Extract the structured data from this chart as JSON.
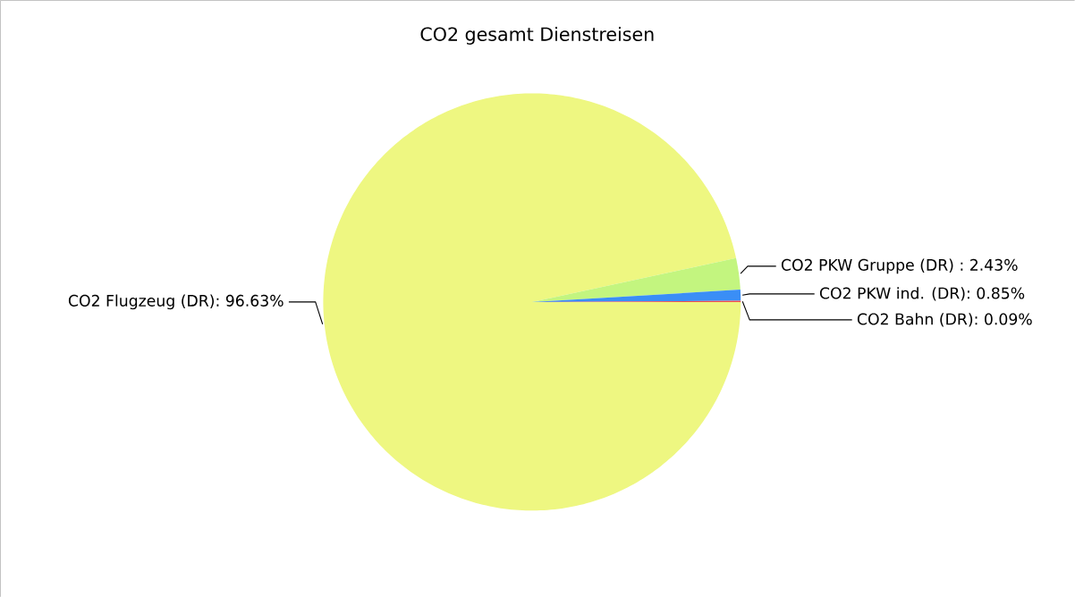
{
  "chart_data": {
    "type": "pie",
    "title": "CO2 gesamt Dienstreisen",
    "categories": [
      "CO2 Flugzeug (DR): 96.63%",
      "CO2 PKW Gruppe (DR) : 2.43%",
      "CO2 PKW ind. (DR): 0.85%",
      "CO2 Bahn (DR): 0.09%"
    ],
    "values": [
      96.63,
      2.43,
      0.85,
      0.09
    ],
    "colors": [
      "#eef781",
      "#c3f57f",
      "#3a8ef6",
      "#f0504f"
    ]
  }
}
